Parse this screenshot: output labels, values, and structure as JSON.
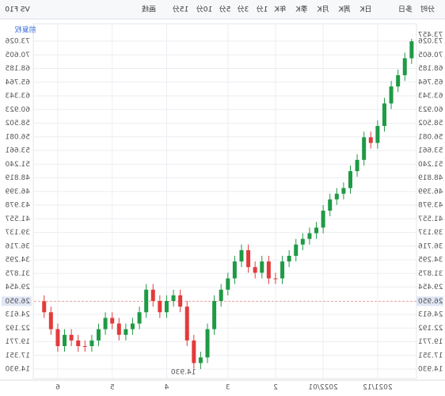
{
  "chart_data": {
    "type": "candlestick",
    "toolbar": [
      "分时",
      "多日",
      "日K",
      "周K",
      "月K",
      "季K",
      "年K",
      "1分",
      "3分",
      "5分",
      "10分",
      "15分",
      "画线",
      "VS F10"
    ],
    "adjust_label": "前复权",
    "open": [
      73,
      70,
      67,
      65,
      62,
      58,
      55,
      56,
      52,
      50,
      47,
      46,
      45,
      43,
      40,
      39,
      38,
      37,
      35,
      34,
      31,
      31,
      34,
      32,
      33,
      36,
      34,
      31,
      29,
      27,
      22,
      17,
      16,
      20,
      26,
      28,
      27,
      25,
      27,
      29,
      25,
      23,
      22,
      21,
      23,
      24,
      22,
      20,
      19,
      19,
      20,
      21,
      19,
      22,
      25
    ],
    "high": [
      73.457,
      71,
      68,
      66,
      63,
      59,
      57,
      57,
      53,
      51,
      48,
      47,
      46,
      44,
      41,
      40,
      39,
      38,
      36,
      35,
      32,
      35,
      35,
      34,
      37,
      37,
      35,
      32,
      30,
      28,
      23,
      18,
      21,
      27,
      29,
      29,
      28,
      28,
      30,
      30,
      26,
      24,
      23,
      24,
      25,
      25,
      23,
      21,
      20,
      21,
      22,
      22,
      23,
      26,
      28
    ],
    "low": [
      69,
      66,
      64,
      61,
      57,
      54,
      54,
      51,
      49,
      46,
      45,
      44,
      42,
      39,
      38,
      37,
      36,
      34,
      33,
      30,
      30,
      30,
      31,
      31,
      32,
      33,
      30,
      28,
      26,
      21,
      16,
      14.93,
      15,
      19,
      25,
      26,
      24,
      24,
      26,
      24,
      22,
      21,
      20,
      20,
      22,
      21,
      19,
      18,
      18,
      18,
      19,
      18,
      18,
      21,
      24
    ],
    "close": [
      70,
      67,
      65,
      62,
      58,
      55,
      56,
      52,
      50,
      47,
      46,
      45,
      43,
      40,
      39,
      38,
      37,
      35,
      34,
      31,
      31,
      34,
      32,
      33,
      36,
      34,
      31,
      29,
      27,
      22,
      17,
      16,
      20,
      26,
      28,
      27,
      25,
      27,
      29,
      25,
      23,
      22,
      21,
      23,
      24,
      22,
      20,
      19,
      19,
      20,
      21,
      19,
      22,
      25,
      26.95
    ],
    "max_label": "73.457",
    "min_label": "14.930",
    "last_price": 26.95,
    "last_price_label": "26.950",
    "up_color": "#e23b3b",
    "down_color": "#1f9a45",
    "ylim": [
      13.25,
      74.71
    ],
    "yticks": [
      {
        "value": 14.93,
        "label": "14.930"
      },
      17.351,
      19.771,
      22.192,
      24.613,
      29.454,
      31.875,
      34.295,
      36.716,
      39.137,
      41.557,
      43.978,
      46.399,
      48.819,
      {
        "value": 51.24,
        "label": "51.240"
      },
      53.661,
      56.081,
      58.502,
      60.923,
      63.343,
      65.764,
      68.185,
      70.605,
      73.026
    ],
    "xlim": [
      -0.25,
      55.6
    ],
    "xticks": [
      {
        "value": 5,
        "label": "2021/12"
      },
      {
        "value": 13,
        "label": "2022/01"
      },
      {
        "value": 20,
        "label": "2"
      },
      {
        "value": 27,
        "label": "3"
      },
      {
        "value": 36,
        "label": "4"
      },
      {
        "value": 44,
        "label": "5"
      },
      {
        "value": 52,
        "label": "6"
      }
    ],
    "grid": true
  }
}
